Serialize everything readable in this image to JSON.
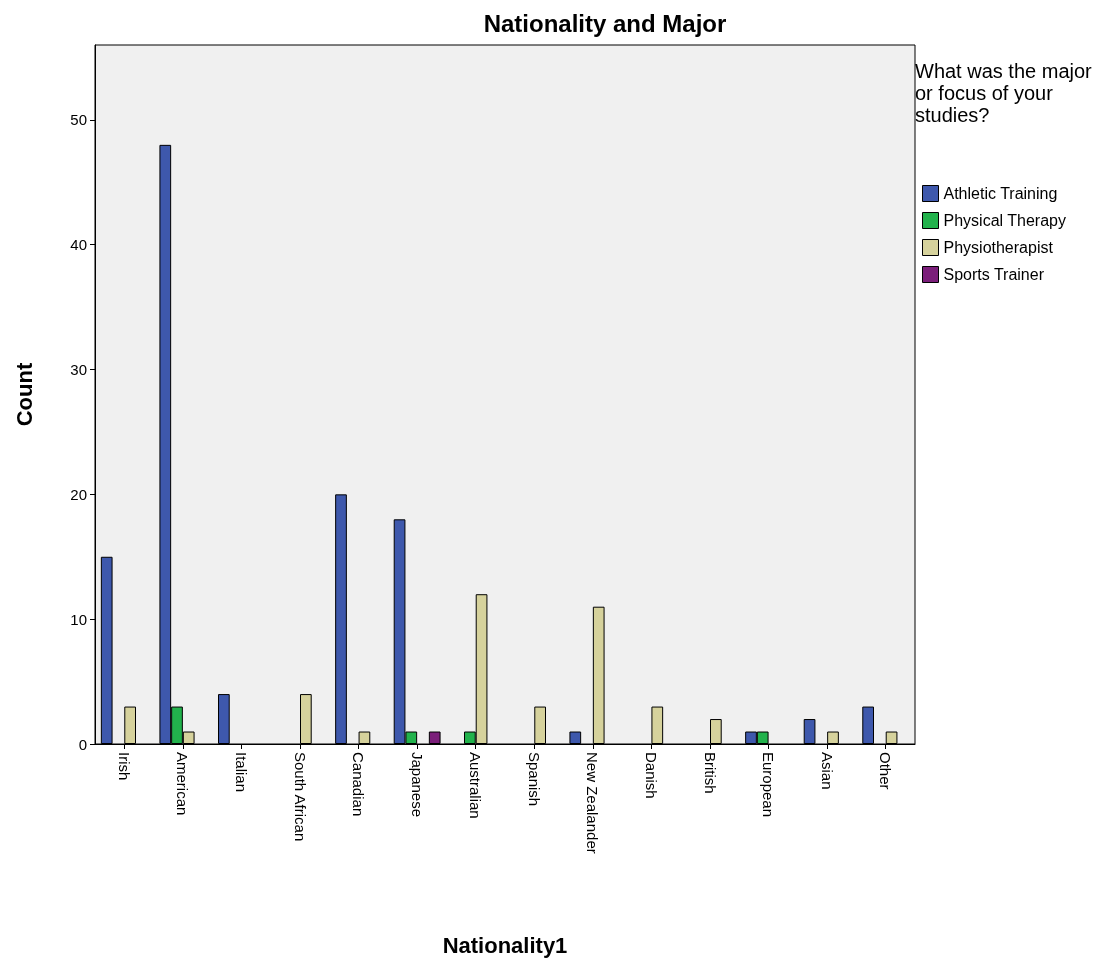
{
  "chart_data": {
    "type": "bar",
    "title": "Nationality and Major",
    "xlabel": "Nationality1",
    "ylabel": "Count",
    "legend_title": "What was the major or focus of your studies?",
    "categories": [
      "Irish",
      "American",
      "Italian",
      "South African",
      "Canadian",
      "Japanese",
      "Australian",
      "Spanish",
      "New Zealander",
      "Danish",
      "British",
      "European",
      "Asian",
      "Other"
    ],
    "series": [
      {
        "name": "Athletic Training",
        "color": "#3e58ac",
        "values": [
          15,
          48,
          4,
          null,
          20,
          18,
          null,
          null,
          1,
          null,
          null,
          1,
          2,
          3
        ]
      },
      {
        "name": "Physical Therapy",
        "color": "#22b24c",
        "values": [
          null,
          3,
          null,
          null,
          null,
          1,
          1,
          null,
          null,
          null,
          null,
          1,
          null,
          null
        ]
      },
      {
        "name": "Physiotherapist",
        "color": "#d6d29c",
        "values": [
          3,
          1,
          null,
          4,
          1,
          null,
          12,
          3,
          11,
          3,
          2,
          null,
          1,
          1
        ]
      },
      {
        "name": "Sports Trainer",
        "color": "#7b1e7a",
        "values": [
          null,
          null,
          null,
          null,
          null,
          1,
          null,
          null,
          null,
          null,
          null,
          null,
          null,
          null
        ]
      }
    ],
    "ylim": [
      0,
      56
    ],
    "yticks": [
      0,
      10,
      20,
      30,
      40,
      50
    ],
    "grid": false,
    "legend": "right"
  }
}
